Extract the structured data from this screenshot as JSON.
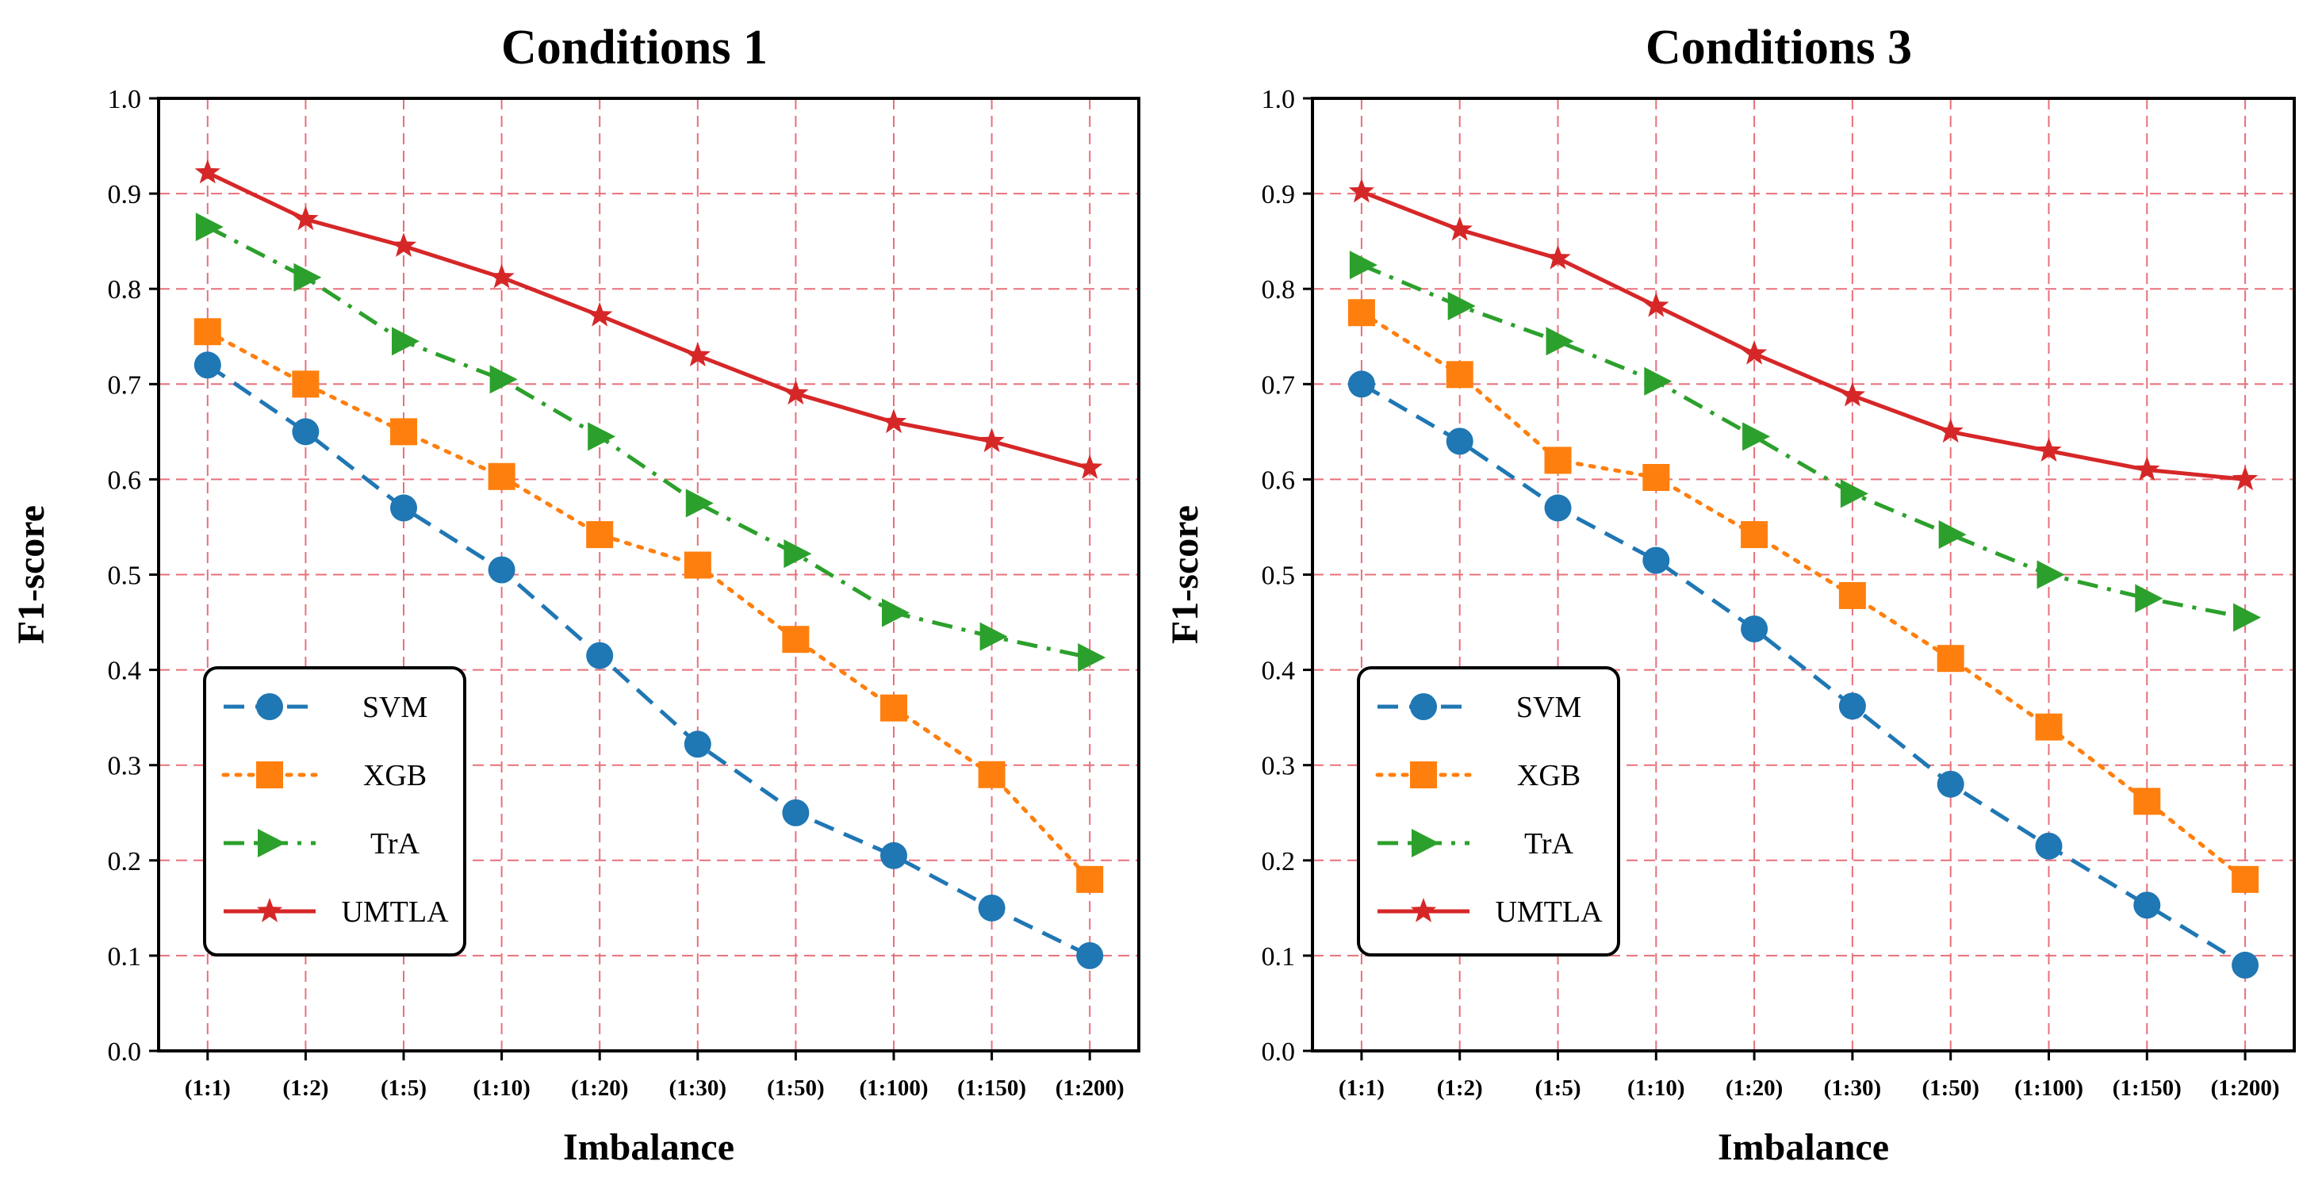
{
  "chart_data": [
    {
      "type": "line",
      "title": "Conditions 1",
      "xlabel": "Imbalance",
      "ylabel": "F1-score",
      "ylim": [
        0.0,
        1.0
      ],
      "yticks": [
        "0.0",
        "0.1",
        "0.2",
        "0.3",
        "0.4",
        "0.5",
        "0.6",
        "0.7",
        "0.8",
        "0.9",
        "1.0"
      ],
      "grid": true,
      "legend_position": "lower-left",
      "categories": [
        "(1:1)",
        "(1:2)",
        "(1:5)",
        "(1:10)",
        "(1:20)",
        "(1:30)",
        "(1:50)",
        "(1:100)",
        "(1:150)",
        "(1:200)"
      ],
      "series": [
        {
          "name": "SVM",
          "color": "#1f77b4",
          "style": "dashed",
          "marker": "circle",
          "values": [
            0.72,
            0.65,
            0.57,
            0.505,
            0.415,
            0.322,
            0.25,
            0.205,
            0.15,
            0.1
          ]
        },
        {
          "name": "XGB",
          "color": "#ff7f0e",
          "style": "dotted",
          "marker": "square",
          "values": [
            0.755,
            0.7,
            0.65,
            0.603,
            0.542,
            0.51,
            0.432,
            0.36,
            0.29,
            0.18
          ]
        },
        {
          "name": "TrA",
          "color": "#2ca02c",
          "style": "dashdot",
          "marker": "triangle-right",
          "values": [
            0.865,
            0.812,
            0.745,
            0.705,
            0.645,
            0.575,
            0.522,
            0.46,
            0.435,
            0.413
          ]
        },
        {
          "name": "UMTLA",
          "color": "#d62728",
          "style": "solid",
          "marker": "star",
          "values": [
            0.922,
            0.873,
            0.845,
            0.812,
            0.772,
            0.73,
            0.69,
            0.66,
            0.64,
            0.612
          ]
        }
      ]
    },
    {
      "type": "line",
      "title": "Conditions 3",
      "xlabel": "Imbalance",
      "ylabel": "F1-score",
      "ylim": [
        0.0,
        1.0
      ],
      "yticks": [
        "0.0",
        "0.1",
        "0.2",
        "0.3",
        "0.4",
        "0.5",
        "0.6",
        "0.7",
        "0.8",
        "0.9",
        "1.0"
      ],
      "grid": true,
      "legend_position": "lower-left",
      "categories": [
        "(1:1)",
        "(1:2)",
        "(1:5)",
        "(1:10)",
        "(1:20)",
        "(1:30)",
        "(1:50)",
        "(1:100)",
        "(1:150)",
        "(1:200)"
      ],
      "series": [
        {
          "name": "SVM",
          "color": "#1f77b4",
          "style": "dashed",
          "marker": "circle",
          "values": [
            0.7,
            0.64,
            0.57,
            0.515,
            0.443,
            0.362,
            0.28,
            0.215,
            0.153,
            0.09
          ]
        },
        {
          "name": "XGB",
          "color": "#ff7f0e",
          "style": "dotted",
          "marker": "square",
          "values": [
            0.775,
            0.71,
            0.62,
            0.602,
            0.542,
            0.478,
            0.412,
            0.34,
            0.262,
            0.18
          ]
        },
        {
          "name": "TrA",
          "color": "#2ca02c",
          "style": "dashdot",
          "marker": "triangle-right",
          "values": [
            0.825,
            0.782,
            0.745,
            0.703,
            0.645,
            0.585,
            0.542,
            0.5,
            0.475,
            0.455
          ]
        },
        {
          "name": "UMTLA",
          "color": "#d62728",
          "style": "solid",
          "marker": "star",
          "values": [
            0.902,
            0.862,
            0.832,
            0.782,
            0.732,
            0.688,
            0.65,
            0.63,
            0.61,
            0.6
          ]
        }
      ]
    }
  ]
}
